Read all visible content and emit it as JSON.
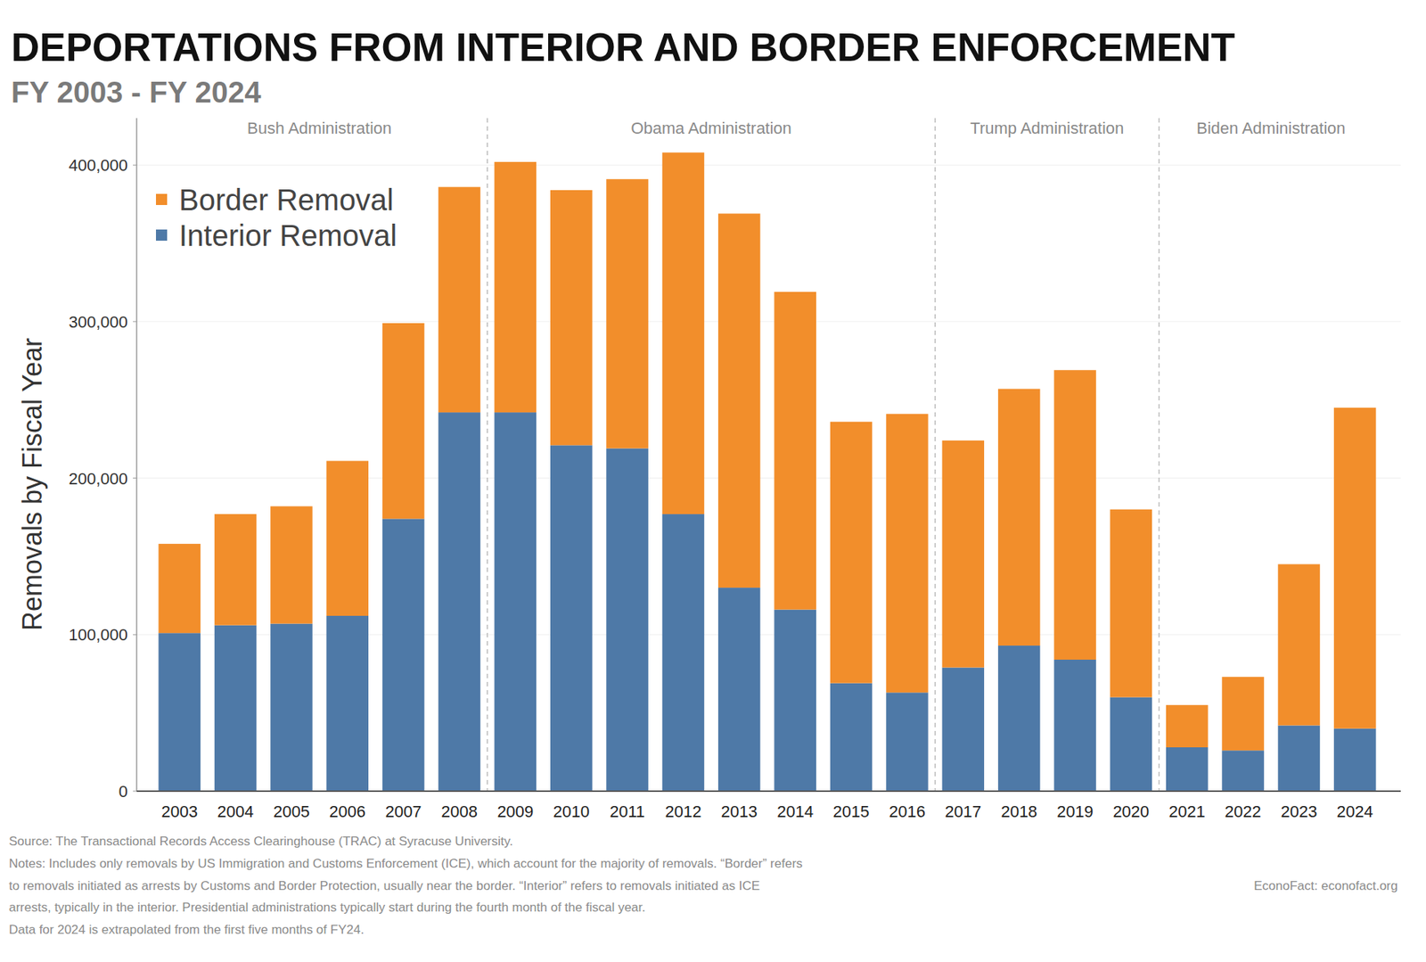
{
  "chart_data": {
    "type": "bar",
    "stacked": true,
    "title": "DEPORTATIONS FROM INTERIOR AND BORDER ENFORCEMENT",
    "subtitle": "FY 2003 - FY 2024",
    "y_label": "Removals by Fiscal Year",
    "categories": [
      "2003",
      "2004",
      "2005",
      "2006",
      "2007",
      "2008",
      "2009",
      "2010",
      "2011",
      "2012",
      "2013",
      "2014",
      "2015",
      "2016",
      "2017",
      "2018",
      "2019",
      "2020",
      "2021",
      "2022",
      "2023",
      "2024"
    ],
    "series": [
      {
        "name": "Border Removal",
        "color": "#f28e2b",
        "values": [
          57000,
          71000,
          75000,
          99000,
          125000,
          144000,
          160000,
          163000,
          172000,
          231000,
          239000,
          203000,
          167000,
          178000,
          145000,
          164000,
          185000,
          120000,
          27000,
          47000,
          103000,
          205000
        ]
      },
      {
        "name": "Interior Removal",
        "color": "#4e79a7",
        "values": [
          101000,
          106000,
          107000,
          112000,
          174000,
          242000,
          242000,
          221000,
          219000,
          177000,
          130000,
          116000,
          69000,
          63000,
          79000,
          93000,
          84000,
          60000,
          28000,
          26000,
          42000,
          40000
        ]
      }
    ],
    "ylim": [
      0,
      430000
    ],
    "yticks": [
      0,
      {
        "value": 100000,
        "label": "100,000"
      },
      {
        "value": 200000,
        "label": "200,000"
      },
      {
        "value": 300000,
        "label": "300,000"
      },
      {
        "value": 400000,
        "label": "400,000"
      }
    ],
    "grid": true,
    "legend": "upper left",
    "annotations": [
      {
        "text": "Bush Administration",
        "from": "2003",
        "to": "2008"
      },
      {
        "text": "Obama Administration",
        "from": "2009",
        "to": "2016"
      },
      {
        "text": "Trump Administration",
        "from": "2017",
        "to": "2020"
      },
      {
        "text": "Biden Administration",
        "from": "2021",
        "to": "2024"
      }
    ],
    "source": "Source: The Transactional Records Access Clearinghouse (TRAC) at Syracuse University.",
    "notes": [
      "Notes: Includes only removals by US Immigration and Customs Enforcement (ICE), which account for the majority of removals. “Border” refers",
      "to removals initiated as arrests by Customs and Border Protection, usually near the border. “Interior” refers to removals initiated as ICE",
      "arrests, typically in the interior. Presidential administrations typically start during the fourth month of the fiscal year.",
      "Data for 2024 is extrapolated from the first five months of FY24."
    ],
    "credit": "EconoFact:   econofact.org"
  }
}
